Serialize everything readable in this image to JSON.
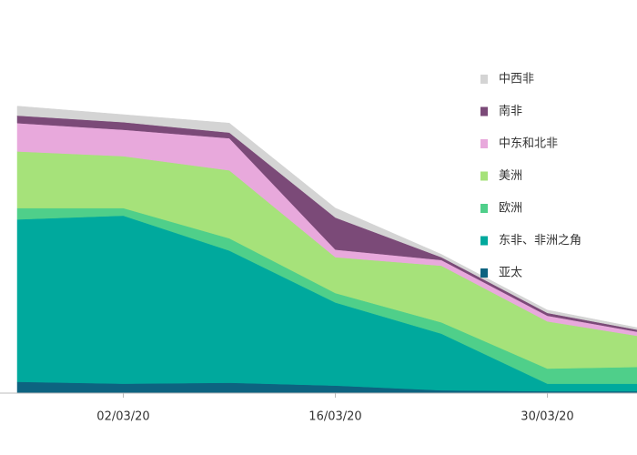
{
  "chart_data": {
    "type": "stacked_area",
    "categories": [
      null,
      "02/03/20",
      null,
      "16/03/20",
      null,
      "30/03/20",
      null
    ],
    "ylim": [
      0,
      320
    ],
    "legend": "right",
    "series": [
      {
        "name": "亚太",
        "color": "#0d6380",
        "values": [
          12,
          10,
          11,
          8,
          3,
          2,
          2
        ]
      },
      {
        "name": "东非、非洲之角",
        "color": "#00a99d",
        "values": [
          172,
          178,
          140,
          88,
          60,
          8,
          8
        ]
      },
      {
        "name": "欧洲",
        "color": "#4fcf8a",
        "values": [
          12,
          8,
          13,
          10,
          12,
          16,
          18
        ]
      },
      {
        "name": "美洲",
        "color": "#a6e27a",
        "values": [
          60,
          55,
          72,
          38,
          60,
          50,
          30
        ]
      },
      {
        "name": "中东和北非",
        "color": "#e8a9dc",
        "values": [
          30,
          28,
          34,
          8,
          6,
          6,
          4
        ]
      },
      {
        "name": "南非",
        "color": "#7b4a78",
        "values": [
          8,
          8,
          6,
          34,
          3,
          3,
          2
        ]
      },
      {
        "name": "中西非",
        "color": "#d4d4d4",
        "values": [
          10,
          8,
          10,
          10,
          3,
          3,
          2
        ]
      }
    ]
  }
}
